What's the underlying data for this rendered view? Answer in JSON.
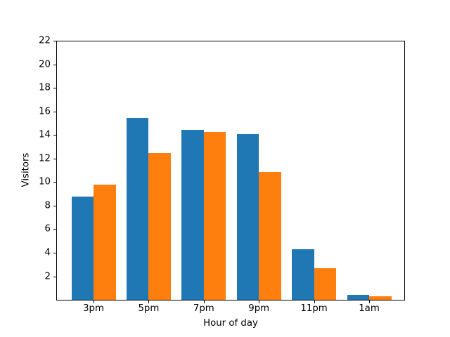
{
  "chart_data": {
    "type": "bar",
    "title": "",
    "xlabel": "Hour of day",
    "ylabel": "Visitors",
    "categories": [
      "3pm",
      "5pm",
      "7pm",
      "9pm",
      "11pm",
      "1am"
    ],
    "series": [
      {
        "name": "series-1-blue",
        "color": "#1f77b4",
        "values": [
          8.8,
          15.5,
          14.5,
          14.1,
          4.3,
          0.4
        ]
      },
      {
        "name": "series-2-orange",
        "color": "#ff7f0e",
        "values": [
          9.8,
          12.5,
          14.3,
          10.9,
          2.7,
          0.3
        ]
      }
    ],
    "ylim": [
      0,
      22
    ],
    "yticks": [
      2,
      4,
      6,
      8,
      10,
      12,
      14,
      16,
      18,
      20,
      22
    ],
    "grid": false,
    "legend": "none",
    "axis_color": "#000000",
    "background_color": "#ffffff"
  }
}
